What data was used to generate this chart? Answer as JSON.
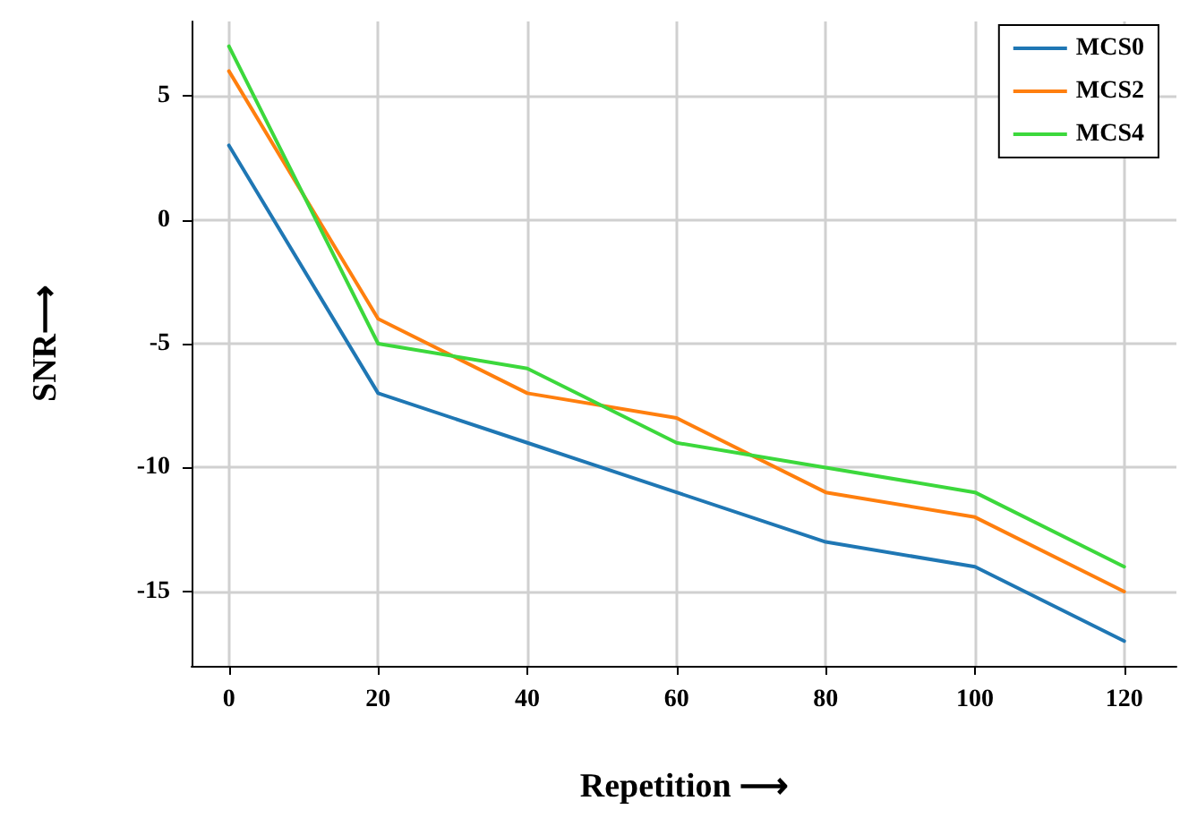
{
  "chart_data": {
    "type": "line",
    "xlabel": "Repetition ⟶",
    "ylabel": "SNR⟶",
    "x": [
      0,
      20,
      40,
      60,
      80,
      100,
      120
    ],
    "series": [
      {
        "name": "MCS0",
        "color": "#1f77b4",
        "values": [
          3,
          -7,
          -9,
          -11,
          -13,
          -14,
          -17
        ]
      },
      {
        "name": "MCS2",
        "color": "#ff7f0e",
        "values": [
          6,
          -4,
          -7,
          -8,
          -11,
          -12,
          -15
        ]
      },
      {
        "name": "MCS4",
        "color": "#3cd83c",
        "values": [
          7,
          -5,
          -6,
          -9,
          -10,
          -11,
          -14
        ]
      }
    ],
    "xlim": [
      -5,
      127
    ],
    "xticks": [
      0,
      20,
      40,
      60,
      80,
      100,
      120
    ],
    "ylim": [
      -18,
      8
    ],
    "yticks": [
      -15,
      -10,
      -5,
      0,
      5
    ],
    "grid": true,
    "legend": "top right",
    "marker": "none",
    "line_style": "solid"
  }
}
